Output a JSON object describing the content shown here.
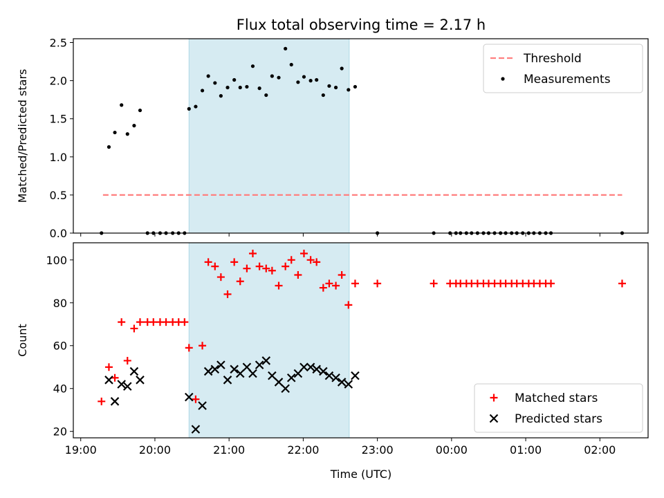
{
  "chart_data": {
    "type": "scatter",
    "title": "Flux total observing time = 2.17 h",
    "xlabel": "Time (UTC)",
    "x_unit": "hours since 19:00 UTC",
    "x_range": [
      -0.1,
      7.65
    ],
    "x_ticks": [
      {
        "x": 0,
        "label": "19:00"
      },
      {
        "x": 1,
        "label": "20:00"
      },
      {
        "x": 2,
        "label": "21:00"
      },
      {
        "x": 3,
        "label": "22:00"
      },
      {
        "x": 4,
        "label": "23:00"
      },
      {
        "x": 5,
        "label": "00:00"
      },
      {
        "x": 6,
        "label": "01:00"
      },
      {
        "x": 7,
        "label": "02:00"
      }
    ],
    "highlight_span": {
      "x0": 1.46,
      "x1": 3.62,
      "color": "#add8e6"
    },
    "panels": [
      {
        "name": "ratio",
        "ylabel": "Matched/Predicted stars",
        "ylim": [
          0,
          2.55
        ],
        "y_ticks": [
          "0.0",
          "0.5",
          "1.0",
          "1.5",
          "2.0",
          "2.5"
        ],
        "threshold": {
          "name": "Threshold",
          "y": 0.5,
          "x": [
            0.3,
            7.3
          ],
          "color": "#ff7f7f"
        },
        "series": [
          {
            "name": "Measurements",
            "marker": "dot",
            "color": "#000000",
            "x": [
              0.28,
              0.38,
              0.46,
              0.55,
              0.63,
              0.72,
              0.8,
              0.9,
              0.98,
              1.07,
              1.15,
              1.24,
              1.32,
              1.4,
              1.46,
              1.55,
              1.64,
              1.72,
              1.81,
              1.89,
              1.98,
              2.07,
              2.15,
              2.24,
              2.32,
              2.41,
              2.5,
              2.58,
              2.67,
              2.76,
              2.84,
              2.93,
              3.01,
              3.1,
              3.18,
              3.27,
              3.35,
              3.44,
              3.52,
              3.61,
              3.7,
              4.0,
              4.76,
              4.98,
              5.06,
              5.12,
              5.2,
              5.27,
              5.35,
              5.43,
              5.5,
              5.58,
              5.66,
              5.73,
              5.81,
              5.88,
              5.96,
              6.04,
              6.11,
              6.19,
              6.27,
              6.34,
              7.3
            ],
            "y": [
              0,
              1.13,
              1.32,
              1.68,
              1.3,
              1.41,
              1.61,
              0,
              0,
              0,
              0,
              0,
              0,
              0,
              1.63,
              1.66,
              1.87,
              2.06,
              1.97,
              1.8,
              1.91,
              2.01,
              1.91,
              1.92,
              2.19,
              1.9,
              1.81,
              2.06,
              2.04,
              2.42,
              2.21,
              1.98,
              2.05,
              2.0,
              2.01,
              1.81,
              1.93,
              1.91,
              2.16,
              1.88,
              1.92,
              0,
              0,
              0,
              0,
              0,
              0,
              0,
              0,
              0,
              0,
              0,
              0,
              0,
              0,
              0,
              0,
              0,
              0,
              0,
              0,
              0,
              0
            ]
          }
        ],
        "legend": {
          "position": "top-right",
          "entries": [
            "Threshold",
            "Measurements"
          ]
        }
      },
      {
        "name": "counts",
        "ylabel": "Count",
        "ylim": [
          17,
          108
        ],
        "y_ticks": [
          "20",
          "40",
          "60",
          "80",
          "100"
        ],
        "series": [
          {
            "name": "Matched stars",
            "marker": "plus",
            "color": "#ff0000",
            "x": [
              0.28,
              0.38,
              0.46,
              0.55,
              0.63,
              0.72,
              0.8,
              0.9,
              0.98,
              1.07,
              1.15,
              1.24,
              1.32,
              1.4,
              1.46,
              1.55,
              1.64,
              1.72,
              1.81,
              1.89,
              1.98,
              2.07,
              2.15,
              2.24,
              2.32,
              2.41,
              2.5,
              2.58,
              2.67,
              2.76,
              2.84,
              2.93,
              3.01,
              3.1,
              3.18,
              3.27,
              3.35,
              3.44,
              3.52,
              3.61,
              3.7,
              4.0,
              4.76,
              4.98,
              5.06,
              5.12,
              5.2,
              5.27,
              5.35,
              5.43,
              5.5,
              5.58,
              5.66,
              5.73,
              5.81,
              5.88,
              5.96,
              6.04,
              6.11,
              6.19,
              6.27,
              6.34,
              7.3
            ],
            "y": [
              34,
              50,
              45,
              71,
              53,
              68,
              71,
              71,
              71,
              71,
              71,
              71,
              71,
              71,
              59,
              35,
              60,
              99,
              97,
              92,
              84,
              99,
              90,
              96,
              103,
              97,
              96,
              95,
              88,
              97,
              100,
              93,
              103,
              100,
              99,
              87,
              89,
              88,
              93,
              79,
              89,
              89,
              89,
              89,
              89,
              89,
              89,
              89,
              89,
              89,
              89,
              89,
              89,
              89,
              89,
              89,
              89,
              89,
              89,
              89,
              89,
              89,
              89
            ]
          },
          {
            "name": "Predicted stars",
            "marker": "x",
            "color": "#000000",
            "x": [
              0.38,
              0.46,
              0.55,
              0.63,
              0.72,
              0.8,
              1.46,
              1.55,
              1.64,
              1.72,
              1.81,
              1.89,
              1.98,
              2.07,
              2.15,
              2.24,
              2.32,
              2.41,
              2.5,
              2.58,
              2.67,
              2.76,
              2.84,
              2.93,
              3.01,
              3.1,
              3.18,
              3.27,
              3.35,
              3.44,
              3.52,
              3.61,
              3.7
            ],
            "y": [
              44,
              34,
              42,
              41,
              48,
              44,
              36,
              21,
              32,
              48,
              49,
              51,
              44,
              49,
              47,
              50,
              47,
              51,
              53,
              46,
              43,
              40,
              45,
              47,
              50,
              50,
              49,
              48,
              46,
              45,
              43,
              42,
              46
            ]
          }
        ],
        "legend": {
          "position": "bottom-right",
          "entries": [
            "Matched stars",
            "Predicted stars"
          ]
        }
      }
    ]
  }
}
